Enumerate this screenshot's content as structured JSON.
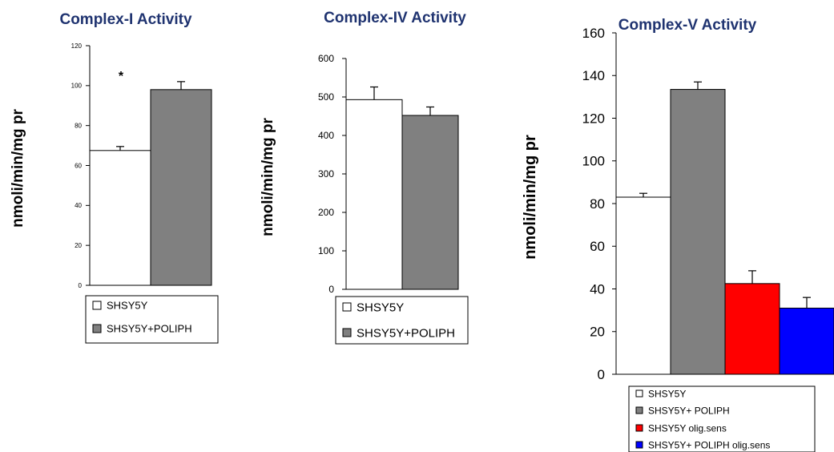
{
  "chart_data": [
    {
      "type": "bar",
      "title": "Complex-I    Activity",
      "ylabel": "nmoli/min/mg pr",
      "ylim": [
        0,
        120
      ],
      "yticks": [
        0,
        20,
        40,
        60,
        80,
        100,
        120
      ],
      "annotation": "*",
      "series": [
        {
          "name": "SHSY5Y",
          "value": 67.5,
          "error": 2,
          "color": "#ffffff"
        },
        {
          "name": "SHSY5Y+POLIPH",
          "value": 98,
          "error": 4,
          "color": "#808080"
        }
      ]
    },
    {
      "type": "bar",
      "title": "Complex-IV Activity",
      "ylabel": "nmoli/min/mg pr",
      "ylim": [
        0,
        600
      ],
      "yticks": [
        0,
        100,
        200,
        300,
        400,
        500,
        600
      ],
      "series": [
        {
          "name": "SHSY5Y",
          "value": 493,
          "error": 33,
          "color": "#ffffff"
        },
        {
          "name": "SHSY5Y+POLIPH",
          "value": 452,
          "error": 22,
          "color": "#808080"
        }
      ]
    },
    {
      "type": "bar",
      "title": "Complex-V Activity",
      "ylabel": "nmoli/min/mg pr",
      "ylim": [
        0,
        160
      ],
      "yticks": [
        0,
        20,
        40,
        60,
        80,
        100,
        120,
        140,
        160
      ],
      "series": [
        {
          "name": "SHSY5Y",
          "value": 83,
          "error": 1.8,
          "color": "#ffffff"
        },
        {
          "name": "SHSY5Y+ POLIPH",
          "value": 133.5,
          "error": 3.5,
          "color": "#808080"
        },
        {
          "name": "SHSY5Y olig.sens",
          "value": 42.5,
          "error": 6,
          "color": "#ff0000"
        },
        {
          "name": "SHSY5Y+ POLIPH olig.sens",
          "value": 31,
          "error": 5,
          "color": "#0000ff"
        }
      ]
    }
  ]
}
